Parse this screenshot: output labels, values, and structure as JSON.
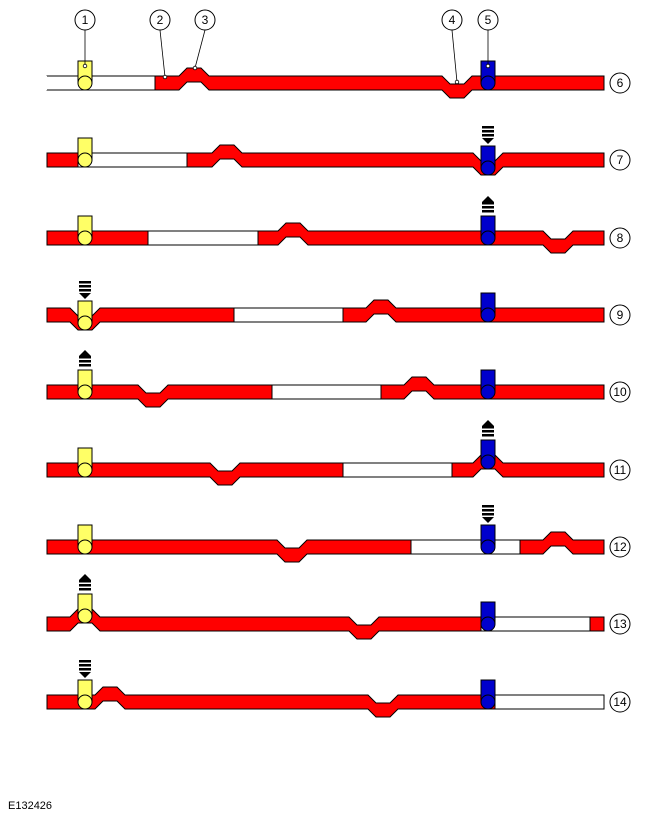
{
  "callouts": [
    "1",
    "2",
    "3",
    "4",
    "5"
  ],
  "row_labels": [
    "6",
    "7",
    "8",
    "9",
    "10",
    "11",
    "12",
    "13",
    "14"
  ],
  "figure_id": "E132426"
}
